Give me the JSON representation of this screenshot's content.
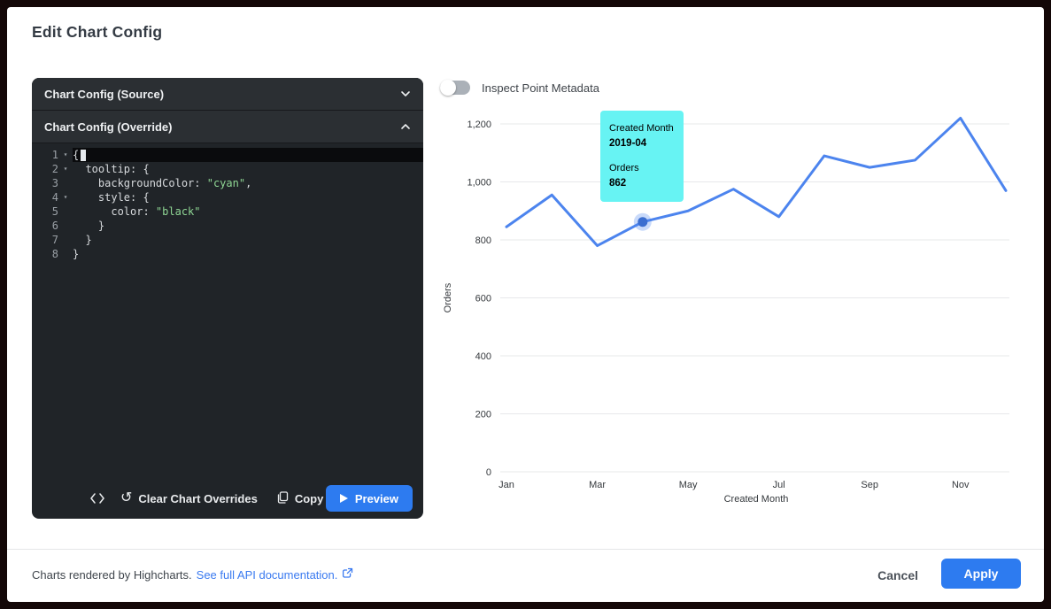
{
  "window": {
    "title": "Edit Chart Config"
  },
  "editor": {
    "source_section": {
      "label": "Chart Config (Source)",
      "collapsed": true
    },
    "override_section": {
      "label": "Chart Config (Override)",
      "collapsed": false
    },
    "code_lines": [
      {
        "num": "1",
        "fold": true,
        "active": true,
        "segs": [
          [
            "{",
            "p"
          ]
        ]
      },
      {
        "num": "2",
        "fold": true,
        "active": false,
        "segs": [
          [
            "  tooltip: {",
            "p"
          ]
        ]
      },
      {
        "num": "3",
        "fold": false,
        "active": false,
        "segs": [
          [
            "    backgroundColor: ",
            "p"
          ],
          [
            "\"cyan\"",
            "s"
          ],
          [
            ",",
            "p"
          ]
        ]
      },
      {
        "num": "4",
        "fold": true,
        "active": false,
        "segs": [
          [
            "    style: {",
            "p"
          ]
        ]
      },
      {
        "num": "5",
        "fold": false,
        "active": false,
        "segs": [
          [
            "      color: ",
            "p"
          ],
          [
            "\"black\"",
            "s"
          ]
        ]
      },
      {
        "num": "6",
        "fold": false,
        "active": false,
        "segs": [
          [
            "    }",
            "p"
          ]
        ]
      },
      {
        "num": "7",
        "fold": false,
        "active": false,
        "segs": [
          [
            "  }",
            "p"
          ]
        ]
      },
      {
        "num": "8",
        "fold": false,
        "active": false,
        "segs": [
          [
            "}",
            "p"
          ]
        ]
      }
    ],
    "toolbar": {
      "clear_label": "Clear Chart Overrides",
      "copy_label": "Copy",
      "preview_label": "Preview"
    }
  },
  "inspect_toggle": {
    "label": "Inspect Point Metadata",
    "state": "off"
  },
  "chart_data": {
    "type": "line",
    "xlabel": "Created Month",
    "ylabel": "Orders",
    "x": [
      "2019-01",
      "2019-02",
      "2019-03",
      "2019-04",
      "2019-05",
      "2019-06",
      "2019-07",
      "2019-08",
      "2019-09",
      "2019-10",
      "2019-11",
      "2019-12"
    ],
    "series": [
      {
        "name": "Orders",
        "values": [
          845,
          955,
          780,
          862,
          900,
          975,
          880,
          1090,
          1050,
          1075,
          1220,
          970
        ]
      }
    ],
    "ylim": [
      0,
      1200
    ],
    "y_ticks": [
      0,
      200,
      400,
      600,
      800,
      1000,
      1200
    ],
    "y_tick_labels": [
      "0",
      "200",
      "400",
      "600",
      "800",
      "1,000",
      "1,200"
    ],
    "x_tick_indices": [
      0,
      2,
      4,
      6,
      8,
      10
    ],
    "x_tick_labels": [
      "Jan",
      "Mar",
      "May",
      "Jul",
      "Sep",
      "Nov"
    ],
    "grid": true,
    "legend": false,
    "line_color": "#4c84ee",
    "highlighted_point": {
      "index": 3,
      "x": "2019-04",
      "value": 862
    },
    "tooltip": {
      "line1_label": "Created Month",
      "line1_value": "2019-04",
      "line2_label": "Orders",
      "line2_value": "862",
      "background": "#67f3f3",
      "text_color": "#000000"
    }
  },
  "footer": {
    "credit_text": "Charts rendered by Highcharts.",
    "link_text": "See full API documentation.",
    "cancel_label": "Cancel",
    "apply_label": "Apply"
  },
  "colors": {
    "accent_blue": "#2d7bf0",
    "editor_bg": "#202428",
    "tooltip_cyan": "#67f3f3"
  }
}
